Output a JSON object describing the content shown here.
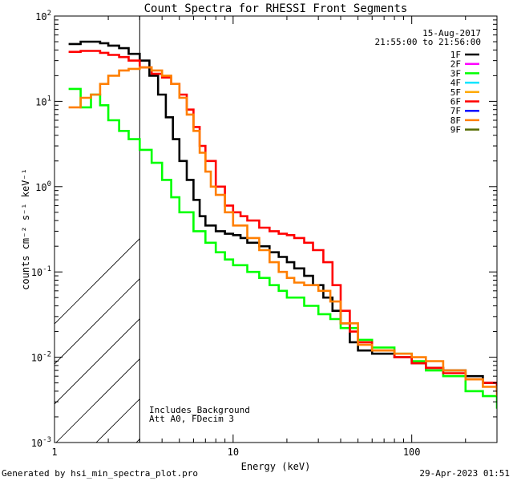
{
  "chart_data": {
    "type": "line",
    "title": "Count Spectra for RHESSI Front Segments",
    "xlabel": "Energy (keV)",
    "ylabel": "counts cm⁻² s⁻¹ keV⁻¹",
    "xscale": "log",
    "yscale": "log",
    "xlim": [
      1,
      300
    ],
    "ylim": [
      0.001,
      100
    ],
    "x_tick_labels": [
      {
        "value": 1,
        "label": "1"
      },
      {
        "value": 10,
        "label": "10"
      },
      {
        "value": 100,
        "label": "100"
      }
    ],
    "y_tick_labels": [
      {
        "value": 100,
        "base": "10",
        "exp": "2"
      },
      {
        "value": 10,
        "base": "10",
        "exp": "1"
      },
      {
        "value": 1,
        "base": "10",
        "exp": "0"
      },
      {
        "value": 0.1,
        "base": "10",
        "exp": "-1"
      },
      {
        "value": 0.01,
        "base": "10",
        "exp": "-2"
      },
      {
        "value": 0.001,
        "base": "10",
        "exp": "-3"
      }
    ],
    "date": "15-Aug-2017",
    "time_range": "21:55:00 to 21:56:00",
    "annotations": [
      "Includes_Background",
      "Att A0, FDecim 3"
    ],
    "hatched_region_upper_kev": 3,
    "legend": [
      {
        "label": "1F",
        "color": "#000000"
      },
      {
        "label": "2F",
        "color": "#ff00ff"
      },
      {
        "label": "3F",
        "color": "#00ff00"
      },
      {
        "label": "4F",
        "color": "#00e5ff"
      },
      {
        "label": "5F",
        "color": "#ffaa00"
      },
      {
        "label": "6F",
        "color": "#ff0000"
      },
      {
        "label": "7F",
        "color": "#0000ff"
      },
      {
        "label": "8F",
        "color": "#ff7f00"
      },
      {
        "label": "9F",
        "color": "#556b00"
      }
    ],
    "series": [
      {
        "name": "1F",
        "color": "#000000",
        "x": [
          1.2,
          1.4,
          1.6,
          1.8,
          2.0,
          2.3,
          2.6,
          3.0,
          3.4,
          3.8,
          4.2,
          4.6,
          5.0,
          5.5,
          6.0,
          6.5,
          7.0,
          8.0,
          9.0,
          10,
          11,
          12,
          14,
          16,
          18,
          20,
          22,
          25,
          28,
          32,
          36,
          40,
          45,
          50,
          60,
          70,
          80,
          100,
          120,
          150,
          200,
          250,
          300
        ],
        "values": [
          47,
          50,
          50,
          48,
          45,
          42,
          36,
          30,
          20,
          12,
          6.5,
          3.6,
          2.0,
          1.2,
          0.7,
          0.45,
          0.35,
          0.3,
          0.28,
          0.27,
          0.25,
          0.22,
          0.2,
          0.17,
          0.15,
          0.13,
          0.11,
          0.09,
          0.07,
          0.05,
          0.035,
          0.025,
          0.015,
          0.012,
          0.011,
          0.011,
          0.01,
          0.0085,
          0.0075,
          0.007,
          0.006,
          0.005,
          0.004
        ]
      },
      {
        "name": "3F",
        "color": "#00ff00",
        "x": [
          1.2,
          1.4,
          1.6,
          1.8,
          2.0,
          2.3,
          2.6,
          3.0,
          3.5,
          4.0,
          4.5,
          5.0,
          6.0,
          7.0,
          8.0,
          9.0,
          10,
          12,
          14,
          16,
          18,
          20,
          25,
          30,
          35,
          40,
          50,
          60,
          80,
          100,
          120,
          150,
          200,
          250,
          300
        ],
        "values": [
          14,
          8.5,
          12,
          9,
          6,
          4.5,
          3.6,
          2.7,
          1.9,
          1.2,
          0.75,
          0.5,
          0.3,
          0.22,
          0.17,
          0.14,
          0.12,
          0.1,
          0.085,
          0.07,
          0.06,
          0.05,
          0.04,
          0.032,
          0.028,
          0.022,
          0.016,
          0.013,
          0.011,
          0.009,
          0.007,
          0.006,
          0.004,
          0.0035,
          0.0025
        ]
      },
      {
        "name": "6F",
        "color": "#ff0000",
        "x": [
          1.2,
          1.4,
          1.6,
          1.8,
          2.0,
          2.3,
          2.6,
          3.0,
          3.5,
          4.0,
          4.5,
          5.0,
          5.5,
          6.0,
          6.5,
          7.0,
          8.0,
          9.0,
          10,
          11,
          12,
          14,
          16,
          18,
          20,
          22,
          25,
          28,
          32,
          36,
          40,
          45,
          50,
          60,
          80,
          100,
          120,
          150,
          200,
          250,
          300
        ],
        "values": [
          38,
          39,
          39,
          37,
          35,
          33,
          30,
          25,
          21,
          19,
          16,
          12,
          8,
          5,
          3,
          2,
          1.0,
          0.6,
          0.5,
          0.45,
          0.4,
          0.33,
          0.3,
          0.28,
          0.27,
          0.25,
          0.22,
          0.18,
          0.13,
          0.07,
          0.035,
          0.02,
          0.015,
          0.012,
          0.01,
          0.0085,
          0.0075,
          0.0065,
          0.0055,
          0.005,
          0.004
        ]
      },
      {
        "name": "8F",
        "color": "#ff7f00",
        "x": [
          1.2,
          1.4,
          1.6,
          1.8,
          2.0,
          2.3,
          2.6,
          3.0,
          3.5,
          4.0,
          4.5,
          5.0,
          5.5,
          6.0,
          6.5,
          7.0,
          7.5,
          8.0,
          9.0,
          10,
          12,
          14,
          16,
          18,
          20,
          22,
          25,
          30,
          35,
          40,
          50,
          60,
          80,
          100,
          120,
          150,
          200,
          250,
          300
        ],
        "values": [
          8.5,
          11,
          12,
          16,
          20,
          23,
          24,
          25,
          23,
          20,
          16,
          11,
          7,
          4.5,
          2.5,
          1.5,
          1.0,
          0.8,
          0.5,
          0.35,
          0.25,
          0.18,
          0.13,
          0.1,
          0.085,
          0.075,
          0.07,
          0.06,
          0.045,
          0.025,
          0.014,
          0.012,
          0.011,
          0.01,
          0.009,
          0.007,
          0.0055,
          0.0045,
          0.0035
        ]
      }
    ]
  },
  "footer": {
    "generated_by": "Generated by hsi_min_spectra_plot.pro",
    "timestamp": "29-Apr-2023 01:51"
  }
}
